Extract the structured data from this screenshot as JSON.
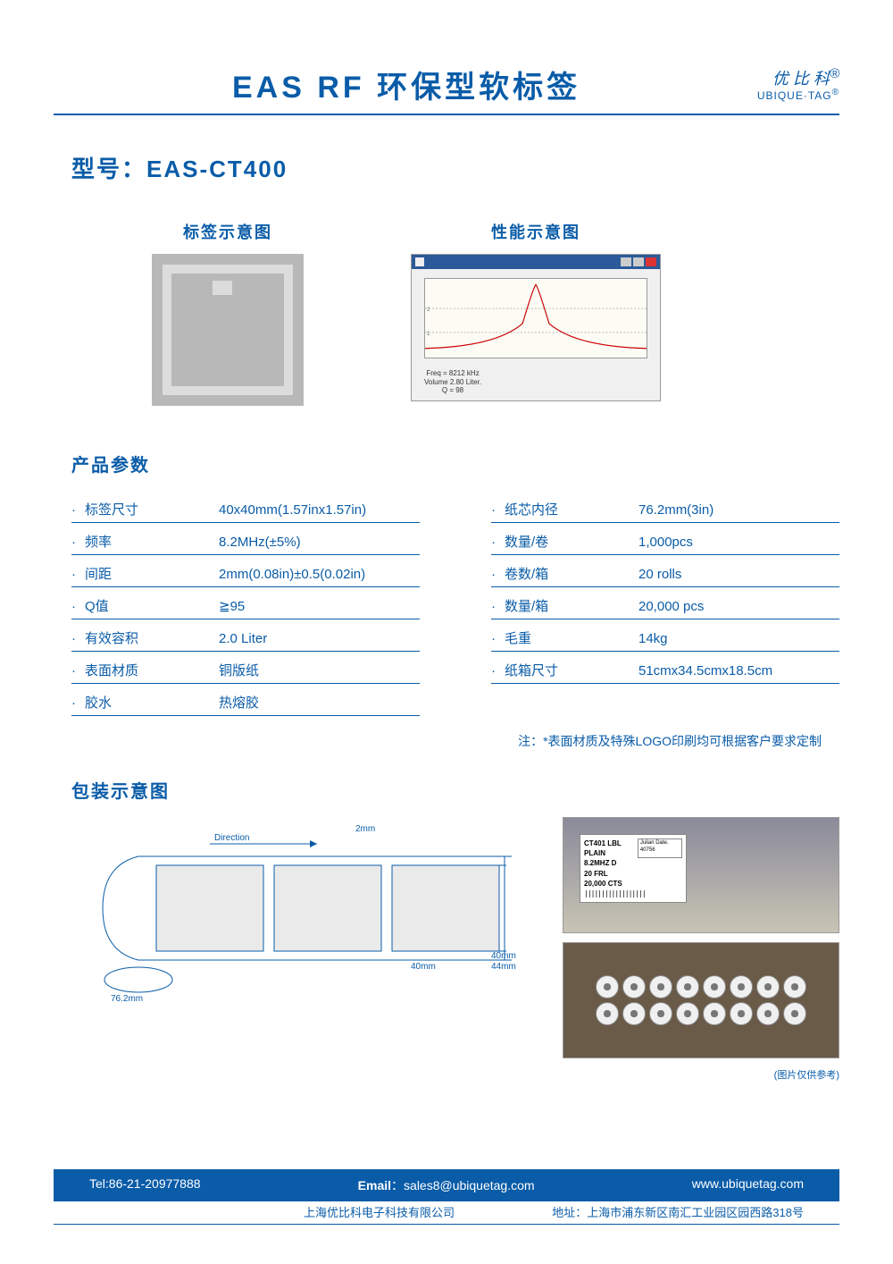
{
  "header": {
    "title": "EAS RF 环保型软标签",
    "brand_cn": "优 比 科",
    "brand_en": "UBIQUE·TAG",
    "brand_reg": "®"
  },
  "model": {
    "label": "型号：",
    "value": "EAS-CT400"
  },
  "diagrams": {
    "tag_title": "标签示意图",
    "perf_title": "性能示意图",
    "perf_lines": [
      "Freq = 8212 kHz",
      "Volume  2.80 Liter.",
      "Q = 98"
    ]
  },
  "params_title": "产品参数",
  "params_left": [
    {
      "label": "标签尺寸",
      "value": "40x40mm(1.57inx1.57in)"
    },
    {
      "label": "频率",
      "value": "8.2MHz(±5%)"
    },
    {
      "label": "间距",
      "value": "2mm(0.08in)±0.5(0.02in)"
    },
    {
      "label": "Q值",
      "value": "≧95"
    },
    {
      "label": "有效容积",
      "value": "2.0 Liter"
    },
    {
      "label": "表面材质",
      "value": "铜版纸"
    },
    {
      "label": "胶水",
      "value": "热熔胶"
    }
  ],
  "params_right": [
    {
      "label": "纸芯内径",
      "value": "76.2mm(3in)"
    },
    {
      "label": "数量/卷",
      "value": "1,000pcs"
    },
    {
      "label": "卷数/箱",
      "value": "20 rolls"
    },
    {
      "label": "数量/箱",
      "value": "20,000 pcs"
    },
    {
      "label": "毛重",
      "value": "14kg"
    },
    {
      "label": "纸箱尺寸",
      "value": "51cmx34.5cmx18.5cm"
    }
  ],
  "note": "注：*表面材质及特殊LOGO印刷均可根据客户要求定制",
  "packaging_title": "包装示意图",
  "packaging_dims": {
    "direction": "Direction",
    "gap": "2mm",
    "width": "40mm",
    "height": "40mm",
    "strip_h": "44mm",
    "core": "76.2mm"
  },
  "photo_label": {
    "line1": "CT401 LBL PLAIN",
    "line2": "8.2MHZ  D",
    "line3": "20 FRL",
    "line4": "20,000 CTS",
    "julian": "Julian Date. 40756"
  },
  "photo_note": "(图片仅供参考)",
  "footer": {
    "tel": "Tel:86-21-20977888",
    "email_label": "Email",
    "email": "sales8@ubiquetag.com",
    "web": "www.ubiquetag.com",
    "company": "上海优比科电子科技有限公司",
    "addr_label": "地址：",
    "addr": "上海市浦东新区南汇工业园区园西路318号"
  },
  "colors": {
    "primary": "#0a5ca8",
    "curve": "#cc0000"
  }
}
